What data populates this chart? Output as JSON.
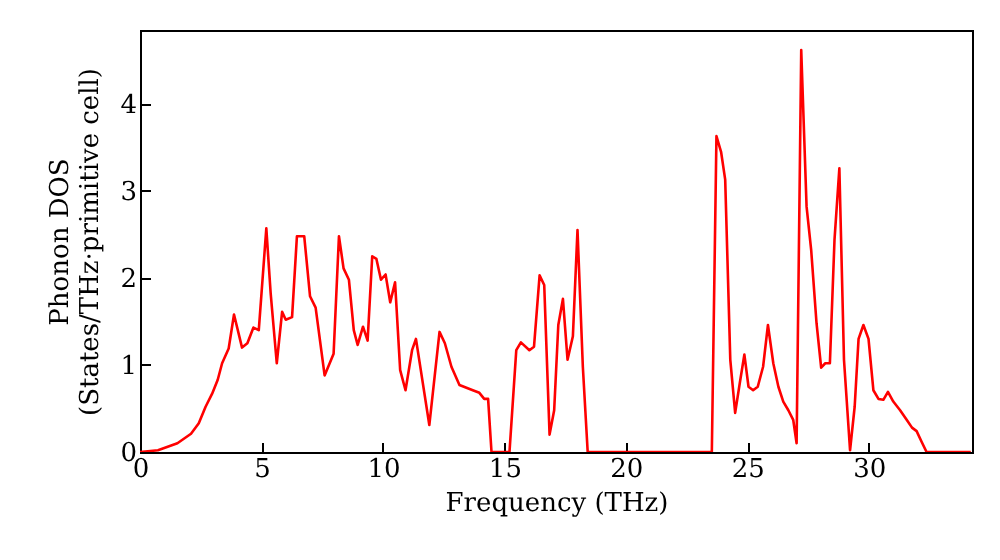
{
  "chart_data": {
    "type": "line",
    "xlabel": "Frequency (THz)",
    "ylabel": "Phonon DOS\n(States/THz·primitive cell)",
    "xlim": [
      0,
      34.25
    ],
    "ylim": [
      0,
      4.85
    ],
    "xticks": [
      0,
      5,
      10,
      15,
      20,
      25,
      30
    ],
    "yticks": [
      0,
      1,
      2,
      3,
      4
    ],
    "grid": false,
    "marker": "none",
    "line_style": "solid",
    "series": [
      {
        "color": "#ff0000",
        "x": [
          0,
          0.74,
          1.54,
          2.1,
          2.42,
          2.7,
          2.97,
          3.2,
          3.38,
          3.65,
          3.87,
          4.2,
          4.42,
          4.67,
          4.89,
          5.2,
          5.38,
          5.63,
          5.85,
          6.0,
          6.26,
          6.46,
          6.76,
          7.0,
          7.23,
          7.6,
          7.97,
          8.19,
          8.38,
          8.6,
          8.8,
          8.96,
          9.18,
          9.37,
          9.56,
          9.73,
          9.92,
          10.11,
          10.3,
          10.5,
          10.71,
          10.93,
          11.2,
          11.36,
          11.91,
          12.33,
          12.55,
          12.82,
          13.15,
          13.7,
          13.97,
          14.17,
          14.33,
          14.47,
          15.21,
          15.49,
          15.68,
          16.03,
          16.22,
          16.45,
          16.64,
          16.86,
          17.05,
          17.22,
          17.41,
          17.6,
          17.82,
          18.01,
          18.23,
          18.43,
          23.54,
          23.73,
          23.92,
          24.09,
          24.3,
          24.5,
          24.69,
          24.88,
          25.05,
          25.24,
          25.43,
          25.65,
          25.85,
          26.07,
          26.28,
          26.48,
          26.69,
          26.89,
          27.03,
          27.22,
          27.44,
          27.63,
          27.85,
          28.04,
          28.21,
          28.4,
          28.59,
          28.79,
          28.98,
          29.23,
          29.42,
          29.58,
          29.78,
          29.99,
          30.19,
          30.4,
          30.6,
          30.79,
          31.01,
          31.29,
          31.56,
          31.78,
          31.97,
          32.17,
          32.38,
          34.2
        ],
        "values": [
          0,
          0.02,
          0.1,
          0.21,
          0.33,
          0.52,
          0.67,
          0.83,
          1.02,
          1.19,
          1.58,
          1.2,
          1.25,
          1.43,
          1.4,
          2.57,
          1.82,
          1.02,
          1.61,
          1.52,
          1.55,
          2.48,
          2.48,
          1.79,
          1.66,
          0.88,
          1.13,
          2.48,
          2.11,
          1.98,
          1.4,
          1.23,
          1.44,
          1.28,
          2.25,
          2.22,
          1.98,
          2.04,
          1.72,
          1.95,
          0.94,
          0.71,
          1.17,
          1.3,
          0.31,
          1.38,
          1.25,
          0.98,
          0.77,
          0.71,
          0.68,
          0.61,
          0.61,
          0,
          0,
          1.17,
          1.26,
          1.17,
          1.21,
          2.03,
          1.92,
          0.2,
          0.48,
          1.46,
          1.76,
          1.06,
          1.33,
          2.55,
          0.98,
          0,
          0,
          3.63,
          3.45,
          3.13,
          1.06,
          0.45,
          0.79,
          1.12,
          0.75,
          0.71,
          0.75,
          0.98,
          1.46,
          1.02,
          0.75,
          0.58,
          0.48,
          0.37,
          0.1,
          4.62,
          2.82,
          2.32,
          1.48,
          0.97,
          1.02,
          1.02,
          2.44,
          3.26,
          1.06,
          0.02,
          0.52,
          1.3,
          1.46,
          1.3,
          0.71,
          0.61,
          0.6,
          0.69,
          0.58,
          0.48,
          0.37,
          0.28,
          0.24,
          0.12,
          0,
          0
        ]
      }
    ]
  }
}
